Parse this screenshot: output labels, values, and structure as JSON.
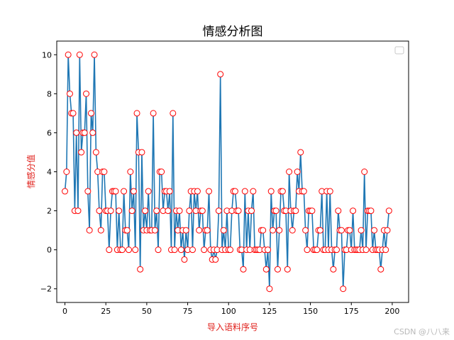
{
  "chart_data": {
    "type": "line",
    "title": "情感分析图",
    "xlabel": "导入语料序号",
    "ylabel": "情感分值",
    "xlim": [
      -5,
      210
    ],
    "ylim": [
      -2.7,
      10.7
    ],
    "xticks": [
      0,
      25,
      50,
      75,
      100,
      125,
      150,
      175,
      200
    ],
    "yticks": [
      -2,
      0,
      2,
      4,
      6,
      8,
      10
    ],
    "grid": false,
    "legend": "top-right (empty box)",
    "line_color": "#1f77b4",
    "marker_edge_color": "#ff0000",
    "marker_face_color": "#ffffff",
    "x_start": 0,
    "series": [
      {
        "values": [
          3,
          4,
          10,
          8,
          7,
          7,
          2,
          6,
          2,
          10,
          5,
          6,
          6,
          8,
          3,
          1,
          7,
          6,
          10,
          5,
          4,
          2,
          1,
          4,
          4,
          2,
          2,
          0,
          2,
          3,
          3,
          3,
          0,
          2,
          0,
          0,
          3,
          1,
          1,
          0,
          4,
          2,
          3,
          0,
          7,
          5,
          -1,
          5,
          1,
          2,
          1,
          3,
          1,
          1,
          7,
          1,
          2,
          0,
          4,
          4,
          2,
          3,
          3,
          2,
          3,
          0,
          7,
          0,
          2,
          1,
          2,
          0,
          1,
          -0.5,
          1,
          0,
          2,
          3,
          0,
          3,
          2,
          3,
          1,
          2,
          2,
          0,
          1,
          1,
          3,
          0,
          -0.5,
          0,
          -0.5,
          0,
          2,
          9,
          0,
          1,
          0,
          2,
          0,
          0,
          2,
          3,
          3,
          2,
          2,
          0,
          0,
          -1,
          3,
          0,
          2,
          0,
          2,
          3,
          0,
          0,
          0,
          0,
          1,
          1,
          0,
          -1,
          0,
          -2,
          3,
          1,
          2,
          2,
          -1,
          1,
          3,
          3,
          2,
          2,
          -1,
          4,
          2,
          1,
          2,
          2,
          4,
          3,
          5,
          3,
          3,
          1,
          0,
          2,
          2,
          2,
          0,
          0,
          0,
          1,
          1,
          3,
          0,
          0,
          3,
          0,
          3,
          0,
          -1,
          0,
          0,
          2,
          1,
          1,
          -2,
          0,
          0,
          1,
          1,
          0,
          2,
          0,
          0,
          0,
          0,
          1,
          0,
          4,
          0,
          2,
          2,
          2,
          0,
          1,
          0,
          0,
          0,
          -1,
          0,
          1,
          0,
          1,
          2
        ]
      }
    ]
  },
  "watermark": "CSDN @八八来"
}
